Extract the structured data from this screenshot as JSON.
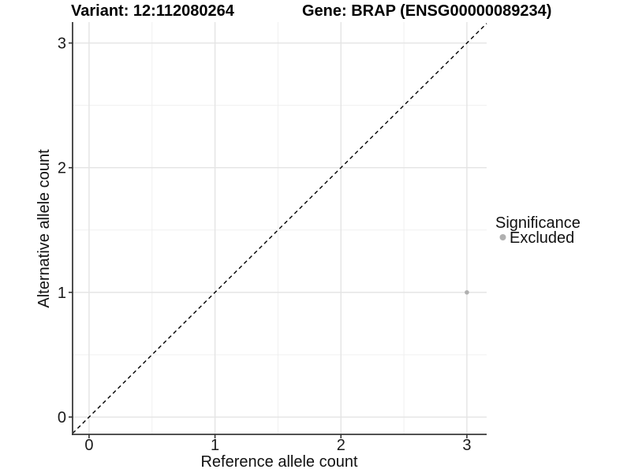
{
  "chart_data": {
    "type": "scatter",
    "title_left": "Variant: 12:112080264",
    "title_right": "Gene: BRAP (ENSG00000089234)",
    "xlabel": "Reference allele count",
    "ylabel": "Alternative allele count",
    "xlim": [
      -0.131,
      3.157
    ],
    "ylim": [
      -0.139,
      3.168
    ],
    "xticks": [
      0,
      1,
      2,
      3
    ],
    "yticks": [
      0,
      1,
      2,
      3
    ],
    "x_minor_ticks": [
      0.5,
      1.5,
      2.5
    ],
    "y_minor_ticks": [
      0.5,
      1.5,
      2.5
    ],
    "grid": "major-and-minor",
    "legend_position": "right",
    "identity_line": {
      "slope": 1,
      "intercept": 0,
      "style": "dashed",
      "color": "#000000"
    },
    "legend": {
      "title": "Significance"
    },
    "series": [
      {
        "name": "Excluded",
        "color": "#b0b0b0",
        "points": [
          {
            "x": 3,
            "y": 1
          }
        ]
      }
    ]
  }
}
